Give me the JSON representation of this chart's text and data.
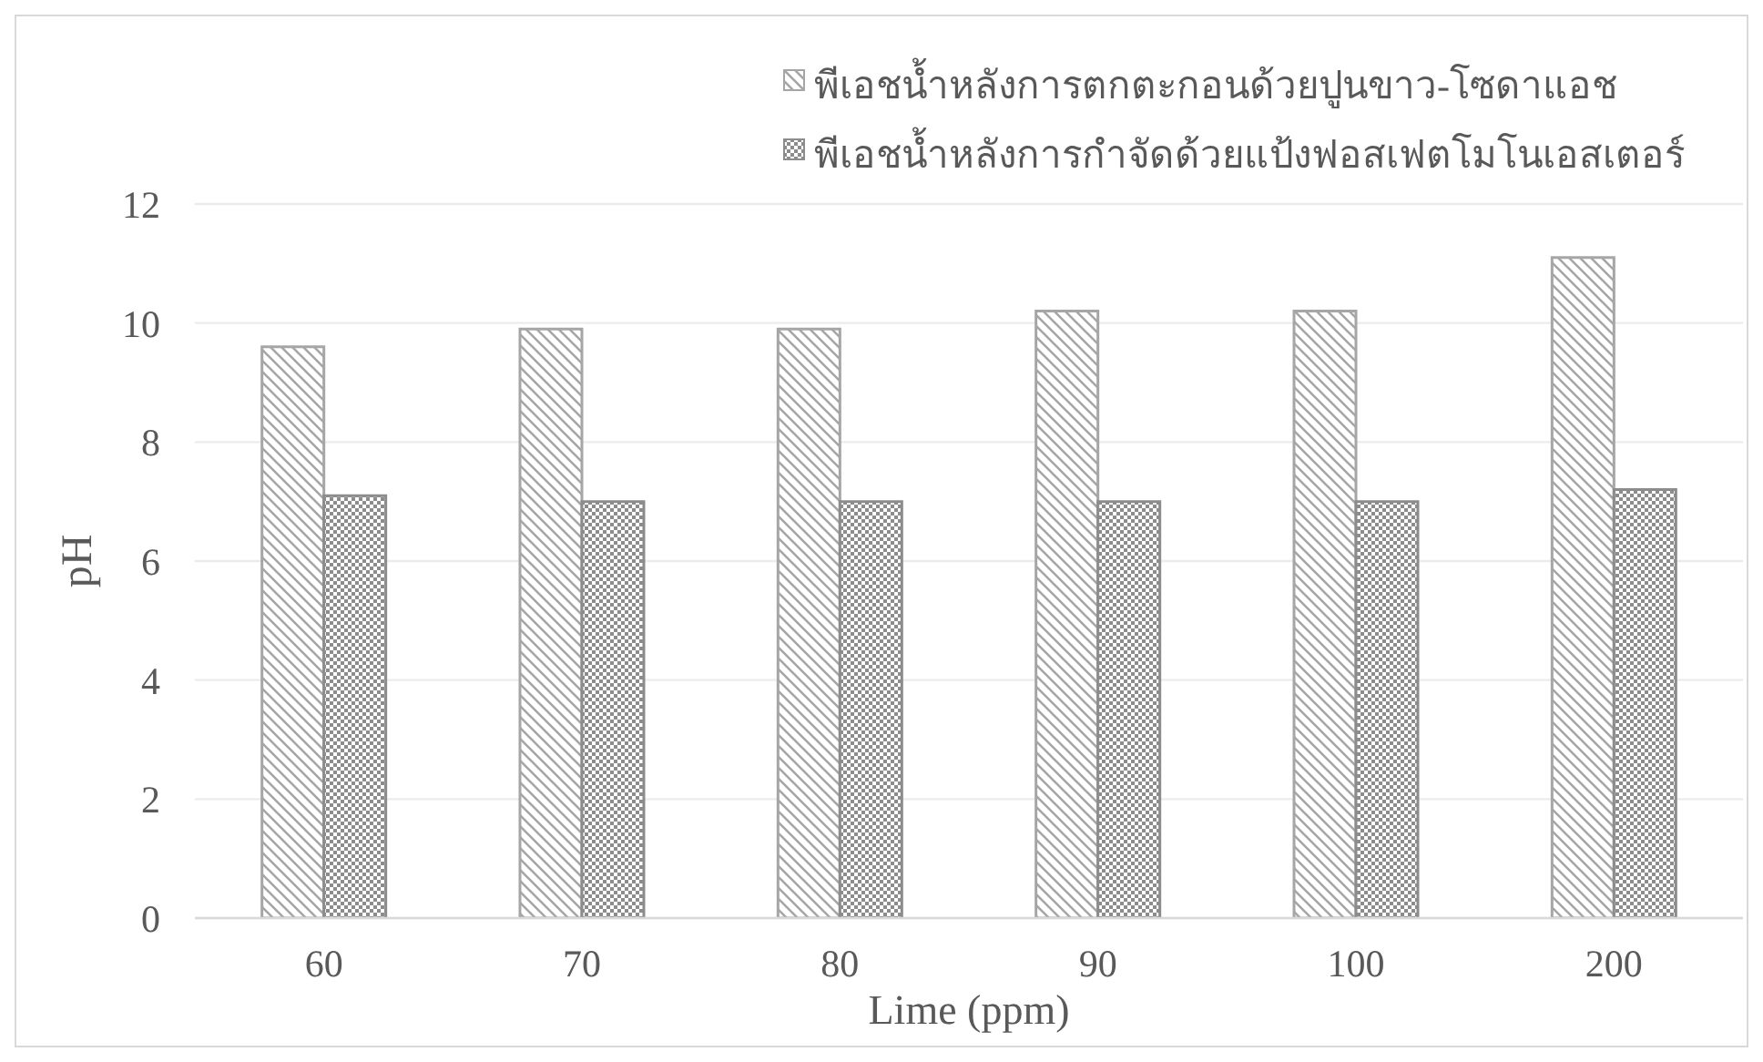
{
  "chart_data": {
    "type": "bar",
    "categories": [
      "60",
      "70",
      "80",
      "90",
      "100",
      "200"
    ],
    "series": [
      {
        "name": "พีเอชน้ำหลังการตกตะกอนด้วยปูนขาว-โซดาแอช",
        "color": "#a6a6a6",
        "values": [
          9.6,
          9.9,
          9.9,
          10.2,
          10.2,
          11.1
        ]
      },
      {
        "name": "พีเอชน้ำหลังการกำจัดด้วยแป้งฟอสเฟตโมโนเอสเตอร์",
        "color": "#8c8c8c",
        "values": [
          7.1,
          7.0,
          7.0,
          7.0,
          7.0,
          7.2
        ]
      }
    ],
    "xlabel": "Lime (ppm)",
    "ylabel": "pH",
    "ylim": [
      0,
      12
    ],
    "yticks": [
      0,
      2,
      4,
      6,
      8,
      10,
      12
    ],
    "grid": "y",
    "legend": "top right"
  }
}
